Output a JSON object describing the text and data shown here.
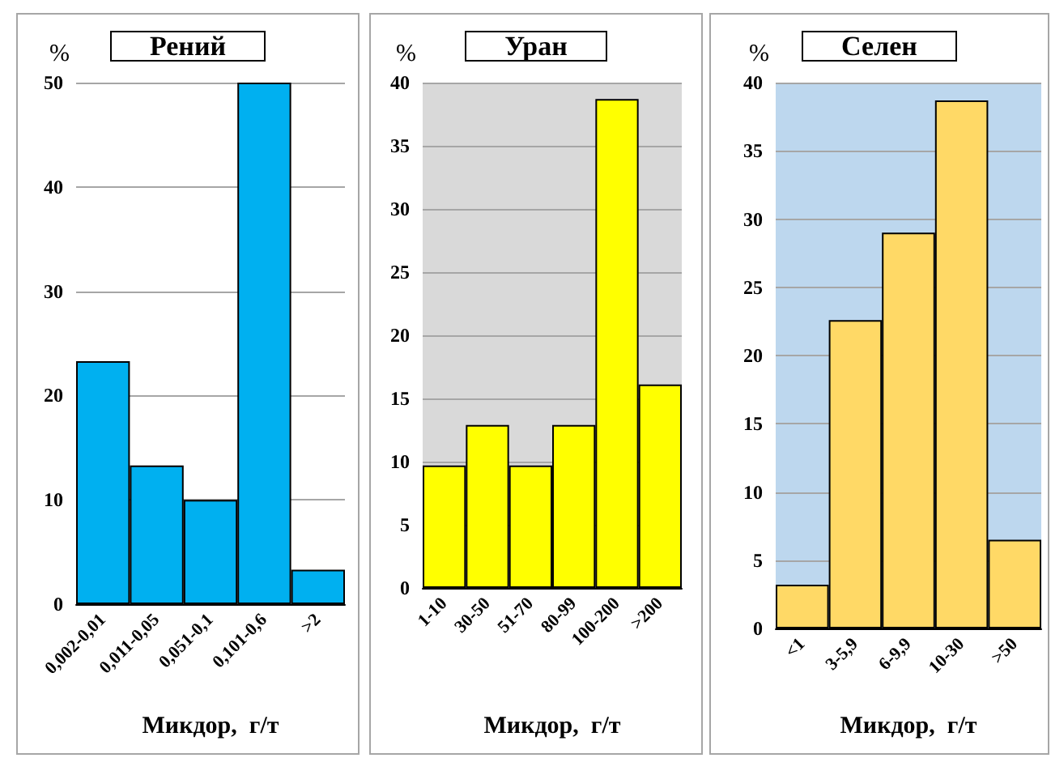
{
  "chart_data": [
    {
      "type": "bar",
      "title": "Рений",
      "ylabel": "%",
      "xlabel": "Микдор,  г/т",
      "categories": [
        "0,002-0,01",
        "0,011-0,05",
        "0,051-0,1",
        "0,101-0,6",
        ">2"
      ],
      "values": [
        23.3,
        13.3,
        10,
        50,
        3.3
      ],
      "color": "#00b0f0",
      "ylim": [
        0,
        50
      ],
      "yticks": [
        0,
        10,
        20,
        30,
        40,
        50
      ],
      "grid": "y"
    },
    {
      "type": "bar",
      "title": "Уран",
      "ylabel": "%",
      "xlabel": "Микдор,  г/т",
      "categories": [
        "1-10",
        "30-50",
        "51-70",
        "80-99",
        "100-200",
        ">200"
      ],
      "values": [
        9.7,
        12.9,
        9.7,
        12.9,
        38.7,
        16.1
      ],
      "color": "#ffff00",
      "ylim": [
        0,
        40
      ],
      "yticks": [
        0,
        5,
        10,
        15,
        20,
        25,
        30,
        35,
        40
      ],
      "grid": "y"
    },
    {
      "type": "bar",
      "title": "Селен",
      "ylabel": "%",
      "xlabel": "Микдор,  г/т",
      "categories": [
        "<1",
        "3-5,9",
        "6-9,9",
        "10-30",
        ">50"
      ],
      "values": [
        3.2,
        22.6,
        29,
        38.7,
        6.5
      ],
      "color": "#ffd966",
      "ylim": [
        0,
        40
      ],
      "yticks": [
        0,
        5,
        10,
        15,
        20,
        25,
        30,
        35,
        40
      ],
      "grid": "y"
    }
  ]
}
